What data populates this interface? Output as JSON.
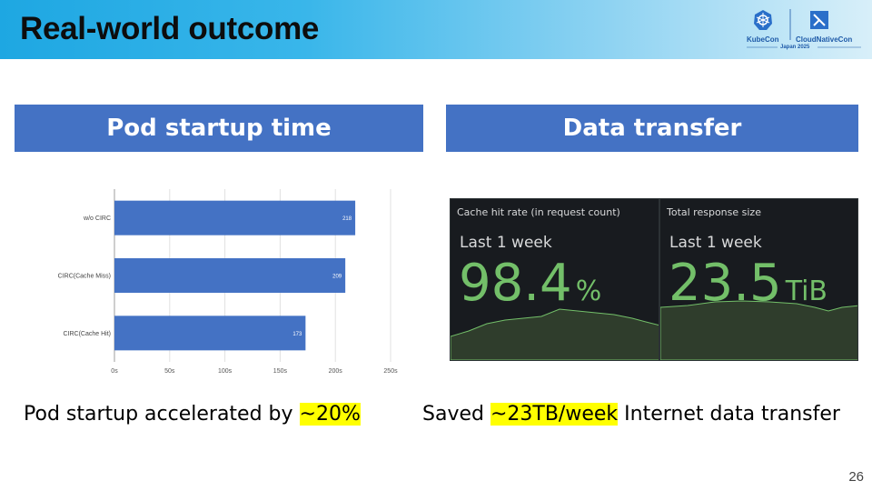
{
  "slide": {
    "title": "Real-world outcome",
    "page_number": "26"
  },
  "logo": {
    "kubecon": "KubeCon",
    "cloudnativecon": "CloudNativeCon",
    "event": "Japan 2025"
  },
  "left": {
    "header": "Pod startup time",
    "caption_prefix": "Pod startup accelerated by ",
    "caption_highlight": "~20%"
  },
  "right": {
    "header": "Data transfer",
    "caption_prefix": "Saved ",
    "caption_highlight": "~23TB/week",
    "caption_suffix": " Internet data transfer"
  },
  "chart_data": {
    "type": "bar",
    "orientation": "horizontal",
    "categories": [
      "w/o CIRC",
      "CIRC(Cache Miss)",
      "CIRC(Cache Hit)"
    ],
    "values": [
      218,
      209,
      173
    ],
    "data_labels": [
      "218",
      "209",
      "173"
    ],
    "xticks": [
      "0s",
      "50s",
      "100s",
      "150s",
      "200s",
      "250s"
    ],
    "xlim": [
      0,
      250
    ],
    "grid": true,
    "color": "#4472c4"
  },
  "grafana": {
    "panels": [
      {
        "title": "Cache hit rate (in request count)",
        "subtitle": "Last 1 week",
        "value": "98.4",
        "unit": "%"
      },
      {
        "title": "Total response size",
        "subtitle": "Last 1 week",
        "value": "23.5",
        "unit": "TiB"
      }
    ],
    "accent": "#73bf69"
  }
}
